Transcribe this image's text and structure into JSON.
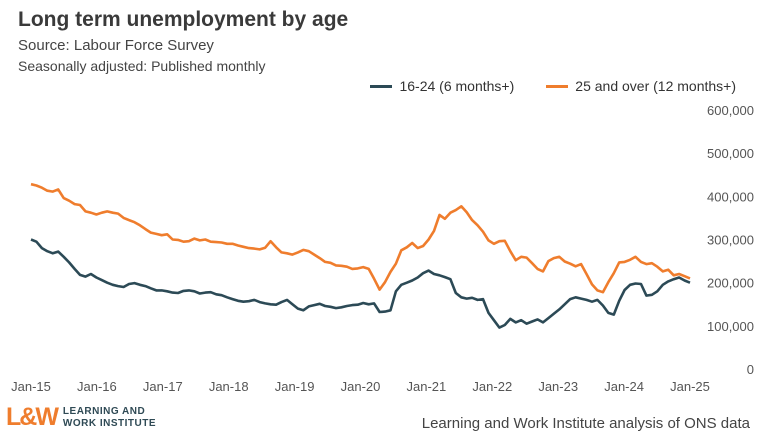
{
  "header": {
    "title": "Long term unemployment by age",
    "subtitle": "Source: Labour Force Survey",
    "note": "Seasonally adjusted: Published monthly"
  },
  "footer": {
    "source": "Learning and Work Institute analysis of ONS data",
    "logo_mark": "L&W",
    "logo_line1": "LEARNING AND",
    "logo_line2": "WORK INSTITUTE"
  },
  "chart_data": {
    "type": "line",
    "title": "Long term unemployment by age",
    "x_ticks": [
      "Jan-15",
      "Jan-16",
      "Jan-17",
      "Jan-18",
      "Jan-19",
      "Jan-20",
      "Jan-21",
      "Jan-22",
      "Jan-23",
      "Jan-24",
      "Jan-25"
    ],
    "y_ticks": [
      "0",
      "100,000",
      "200,000",
      "300,000",
      "400,000",
      "500,000",
      "600,000"
    ],
    "ylim": [
      0,
      600000
    ],
    "legend_position": "top-right",
    "grid": false,
    "series": [
      {
        "name": "16-24 (6 months+)",
        "color": "#2c4a56",
        "values": [
          300000,
          295000,
          280000,
          273000,
          268000,
          272000,
          260000,
          247000,
          232000,
          218000,
          214000,
          220000,
          212000,
          206000,
          200000,
          195000,
          192000,
          190000,
          197000,
          199000,
          195000,
          192000,
          187000,
          182000,
          182000,
          180000,
          177000,
          176000,
          181000,
          182000,
          180000,
          175000,
          177000,
          178000,
          173000,
          171000,
          166000,
          162000,
          158000,
          156000,
          157000,
          160000,
          155000,
          152000,
          150000,
          149000,
          155000,
          160000,
          150000,
          140000,
          136000,
          145000,
          148000,
          151000,
          146000,
          144000,
          141000,
          143000,
          146000,
          148000,
          149000,
          153000,
          150000,
          152000,
          132000,
          133000,
          136000,
          180000,
          195000,
          200000,
          205000,
          212000,
          222000,
          228000,
          220000,
          217000,
          213000,
          208000,
          176000,
          166000,
          163000,
          165000,
          160000,
          162000,
          130000,
          113000,
          96000,
          102000,
          116000,
          108000,
          113000,
          105000,
          110000,
          115000,
          108000,
          118000,
          128000,
          138000,
          150000,
          162000,
          166000,
          163000,
          160000,
          156000,
          160000,
          147000,
          130000,
          126000,
          158000,
          183000,
          195000,
          198000,
          197000,
          170000,
          172000,
          180000,
          195000,
          203000,
          208000,
          212000,
          205000,
          200000
        ]
      },
      {
        "name": "25 and over (12 months+)",
        "color": "#ef7d2d",
        "values": [
          428000,
          425000,
          420000,
          413000,
          411000,
          416000,
          396000,
          390000,
          382000,
          380000,
          365000,
          362000,
          358000,
          362000,
          365000,
          362000,
          360000,
          350000,
          345000,
          340000,
          333000,
          324000,
          316000,
          313000,
          310000,
          312000,
          300000,
          299000,
          295000,
          296000,
          302000,
          298000,
          300000,
          295000,
          294000,
          293000,
          290000,
          290000,
          286000,
          283000,
          280000,
          279000,
          277000,
          281000,
          296000,
          282000,
          270000,
          268000,
          265000,
          270000,
          276000,
          273000,
          265000,
          257000,
          248000,
          246000,
          240000,
          239000,
          237000,
          232000,
          233000,
          236000,
          232000,
          209000,
          184000,
          201000,
          225000,
          244000,
          275000,
          282000,
          292000,
          280000,
          285000,
          300000,
          320000,
          357000,
          348000,
          362000,
          368000,
          377000,
          363000,
          345000,
          333000,
          318000,
          298000,
          290000,
          296000,
          297000,
          273000,
          252000,
          260000,
          258000,
          245000,
          232000,
          226000,
          250000,
          257000,
          260000,
          249000,
          244000,
          238000,
          243000,
          220000,
          196000,
          182000,
          178000,
          201000,
          222000,
          247000,
          248000,
          253000,
          260000,
          248000,
          243000,
          245000,
          237000,
          226000,
          230000,
          217000,
          220000,
          215000,
          210000
        ]
      }
    ]
  }
}
